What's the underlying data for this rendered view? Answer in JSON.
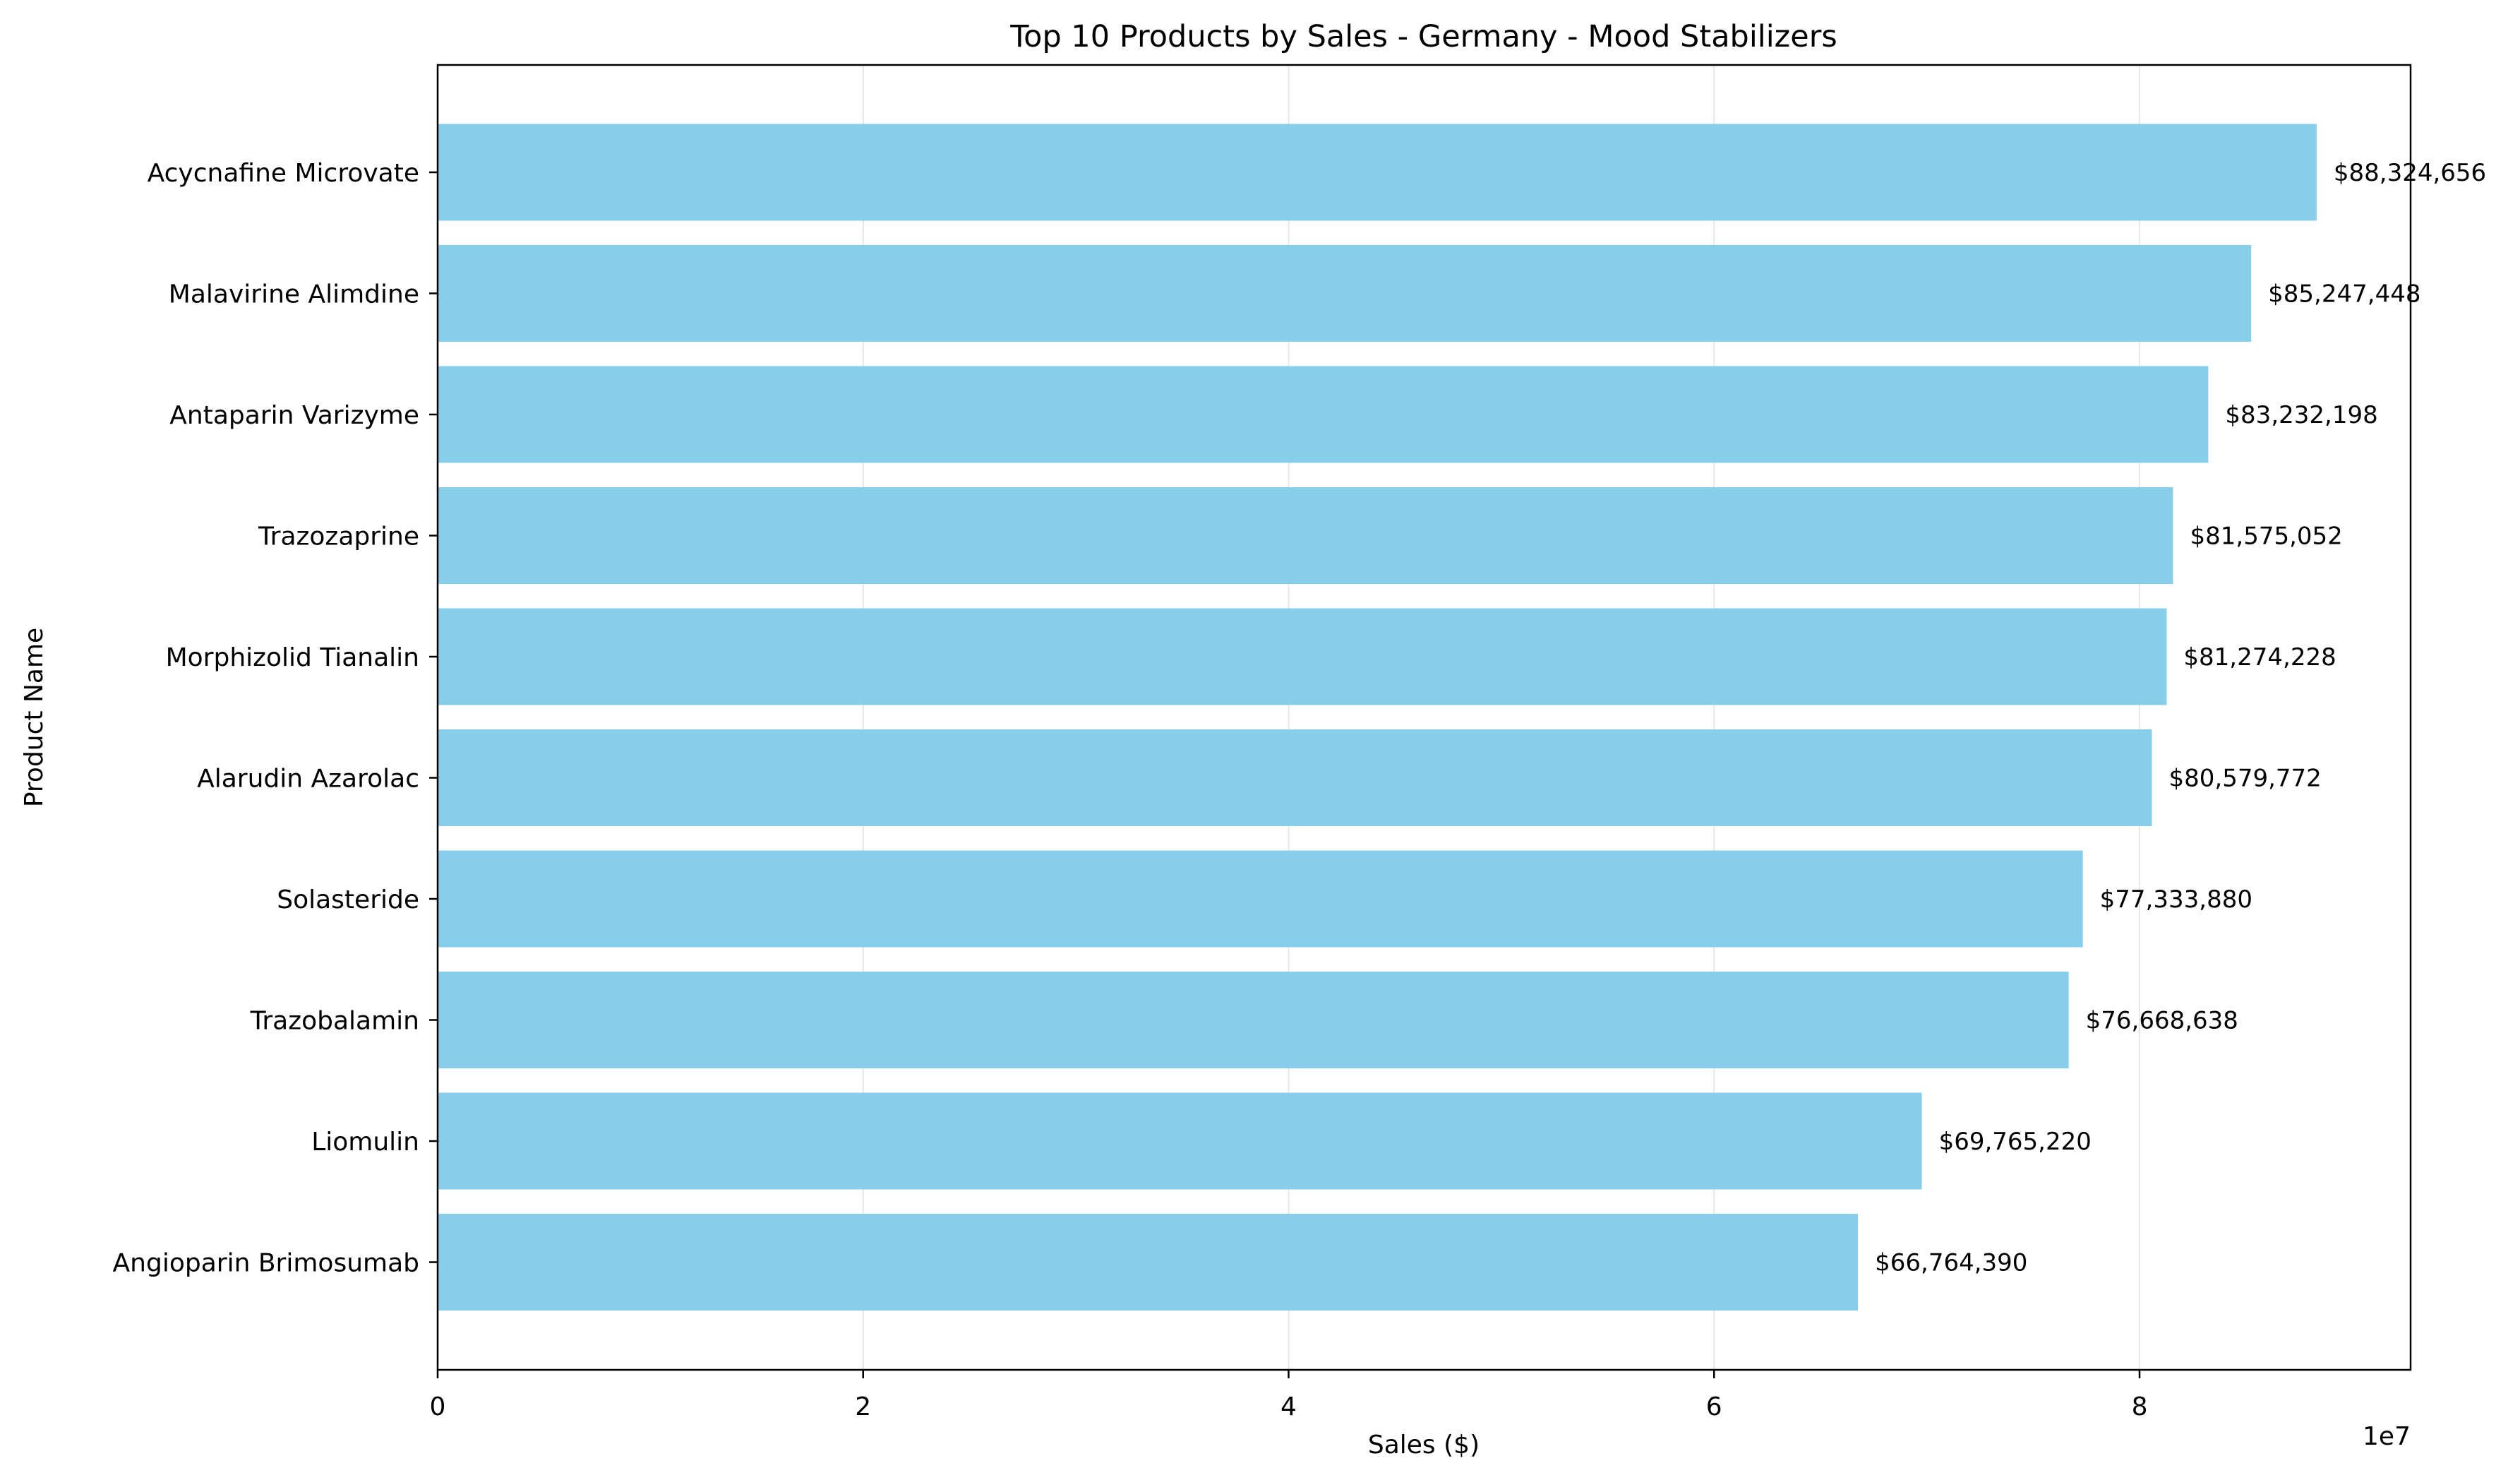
{
  "chart_data": {
    "type": "bar",
    "orientation": "horizontal",
    "title": "Top 10 Products by Sales - Germany - Mood Stabilizers",
    "xlabel": "Sales ($)",
    "ylabel": "Product Name",
    "x_scale_label": "1e7",
    "xlim": [
      0,
      92740889
    ],
    "xticks": [
      {
        "value": 0,
        "label": "0"
      },
      {
        "value": 20000000,
        "label": "2"
      },
      {
        "value": 40000000,
        "label": "4"
      },
      {
        "value": 60000000,
        "label": "6"
      },
      {
        "value": 80000000,
        "label": "8"
      }
    ],
    "grid": "x",
    "bar_color": "#87ceeb",
    "categories": [
      "Acycnafine Microvate",
      "Malavirine Alimdine",
      "Antaparin Varizyme",
      "Trazozaprine",
      "Morphizolid Tianalin",
      "Alarudin Azarolac",
      "Solasteride",
      "Trazobalamin",
      "Liomulin",
      "Angioparin Brimosumab"
    ],
    "values": [
      88324656,
      85247448,
      83232198,
      81575052,
      81274228,
      80579772,
      77333880,
      76668638,
      69765220,
      66764390
    ],
    "data_labels": [
      "$88,324,656",
      "$85,247,448",
      "$83,232,198",
      "$81,575,052",
      "$81,274,228",
      "$80,579,772",
      "$77,333,880",
      "$76,668,638",
      "$69,765,220",
      "$66,764,390"
    ]
  }
}
